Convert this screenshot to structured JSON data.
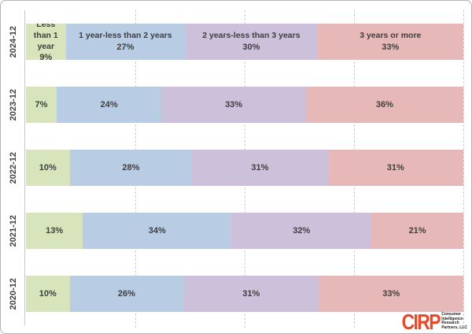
{
  "chart_data": {
    "type": "bar",
    "variant": "100%-stacked-horizontal",
    "title": "",
    "xlabel": "",
    "ylabel": "",
    "xlim": [
      0,
      100
    ],
    "value_suffix": "%",
    "gridlines_at_percent": [
      25,
      50,
      75,
      100
    ],
    "grid_style": "dashed-vertical",
    "legend_position": "none",
    "first_row_shows_series_names": true,
    "categories": [
      "2024-12",
      "2023-12",
      "2022-12",
      "2021-12",
      "2020-12"
    ],
    "series": [
      {
        "name": "Less than 1 year",
        "color": "#d8e4bc",
        "values": [
          9,
          7,
          10,
          13,
          10
        ]
      },
      {
        "name": "1 year-less than 2 years",
        "color": "#b8cce4",
        "values": [
          27,
          24,
          28,
          34,
          26
        ]
      },
      {
        "name": "2 years-less than 3 years",
        "color": "#ccc0da",
        "values": [
          30,
          33,
          31,
          32,
          31
        ]
      },
      {
        "name": "3 years or more",
        "color": "#e6b9b8",
        "values": [
          33,
          36,
          31,
          21,
          33
        ]
      }
    ]
  },
  "branding": {
    "logo_text": "CIRP",
    "logo_color": "#e8492b",
    "logo_subtext_lines": [
      "Consumer",
      "Intelligence",
      "Research",
      "Partners, LLC"
    ]
  }
}
